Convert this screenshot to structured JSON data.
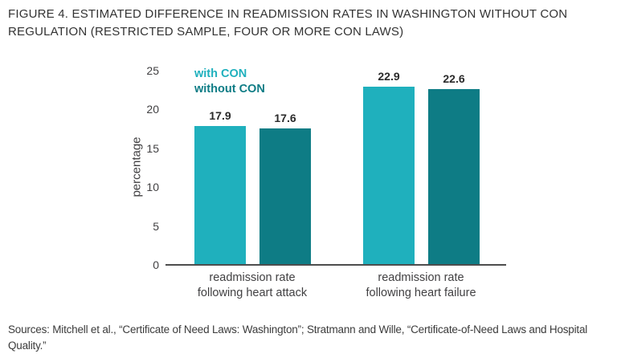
{
  "figure": {
    "title": "FIGURE 4. ESTIMATED DIFFERENCE IN READMISSION RATES IN WASHINGTON WITHOUT CON REGULATION (RESTRICTED SAMPLE, FOUR OR MORE CON LAWS)",
    "sources": "Sources: Mitchell et al., “Certificate of Need Laws: Washington”; Stratmann and Wille, “Certificate-of-Need Laws and Hospital Quality.”"
  },
  "chart_data": {
    "type": "bar",
    "categories": [
      "readmission rate\nfollowing heart attack",
      "readmission rate\nfollowing heart failure"
    ],
    "series": [
      {
        "name": "with CON",
        "values": [
          17.9,
          22.9
        ],
        "color": "#1fb0bd"
      },
      {
        "name": "without CON",
        "values": [
          17.6,
          22.6
        ],
        "color": "#0e7c85"
      }
    ],
    "title": "Estimated difference in readmission rates in Washington without CON regulation",
    "xlabel": "",
    "ylabel": "percentage",
    "ylim": [
      0,
      25
    ],
    "yticks": [
      0,
      5,
      10,
      15,
      20,
      25
    ],
    "grid": false,
    "legend_position": "top-left-inside",
    "value_labels": true,
    "value_label_values": [
      "17.9",
      "17.6",
      "22.9",
      "22.6"
    ]
  }
}
